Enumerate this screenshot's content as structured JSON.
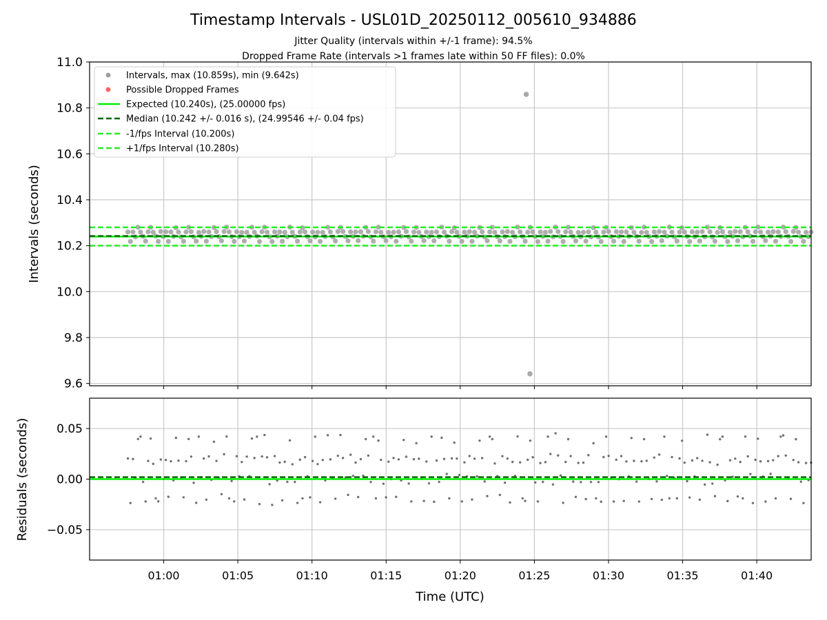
{
  "figure": {
    "title": "Timestamp Intervals - USL01D_20250112_005610_934886",
    "subtitle_line1": "Jitter Quality (intervals within +/-1 frame): 94.5%",
    "subtitle_line2": "Dropped Frame Rate (intervals >1 frames late within 50 FF files): 0.0%"
  },
  "colors": {
    "intervals": "#a0a0a0",
    "dropped": "#ff6666",
    "expected": "#00ee00",
    "median": "#006400",
    "bounds": "#22ee22",
    "residuals": "#707070",
    "grid": "#c8c8c8"
  },
  "chart_data": [
    {
      "type": "scatter",
      "panel": "top",
      "ylabel": "Intervals (seconds)",
      "ylim": [
        9.59,
        11.0
      ],
      "yticks": [
        9.6,
        9.8,
        10.0,
        10.2,
        10.4,
        10.6,
        10.8,
        11.0
      ],
      "ytick_labels": [
        "9.6",
        "9.8",
        "10.0",
        "10.2",
        "10.4",
        "10.6",
        "10.8",
        "11.0"
      ],
      "grid": true,
      "legend_position": "top-left",
      "legend": [
        {
          "label": "Intervals, max (10.859s), min (9.642s)",
          "style": "point-gray"
        },
        {
          "label": "Possible Dropped Frames",
          "style": "point-red"
        },
        {
          "label": "Expected (10.240s), (25.00000 fps)",
          "style": "line-solid"
        },
        {
          "label": "Median (10.242 +/- 0.016 s), (24.99546 +/- 0.04 fps)",
          "style": "line-dashed-dark"
        },
        {
          "label": "-1/fps Interval (10.200s)",
          "style": "line-dashed-light"
        },
        {
          "label": "+1/fps Interval (10.280s)",
          "style": "line-dashed-light"
        }
      ],
      "expected": 10.24,
      "median": 10.242,
      "lower_bound": 10.2,
      "upper_bound": 10.28,
      "series": [
        {
          "name": "Intervals, max (10.859s), min (9.642s)",
          "x_start": "00:57:35",
          "x_end": "01:43:45",
          "baseline": 10.24,
          "typical_spread": [
            10.22,
            10.28
          ],
          "points": [
            {
              "x": "01:24:27",
              "y": 10.859
            },
            {
              "x": "01:24:42",
              "y": 9.642
            }
          ]
        },
        {
          "name": "Possible Dropped Frames",
          "points": []
        }
      ]
    },
    {
      "type": "scatter",
      "panel": "bottom",
      "xlabel": "Time (UTC)",
      "ylabel": "Residuals (seconds)",
      "ylim": [
        -0.08,
        0.08
      ],
      "yticks": [
        -0.05,
        0.0,
        0.05
      ],
      "ytick_labels": [
        "−0.05",
        "0.00",
        "0.05"
      ],
      "xlim": [
        "00:55:00",
        "01:43:40"
      ],
      "xticks": [
        "01:00",
        "01:05",
        "01:10",
        "01:15",
        "01:20",
        "01:25",
        "01:30",
        "01:35",
        "01:40"
      ],
      "grid": true,
      "expected": 0.0,
      "median": 0.002,
      "series": [
        {
          "name": "Residuals",
          "x_start": "00:57:35",
          "x_end": "01:43:45",
          "typical_range": [
            -0.02,
            0.045
          ]
        }
      ]
    }
  ]
}
